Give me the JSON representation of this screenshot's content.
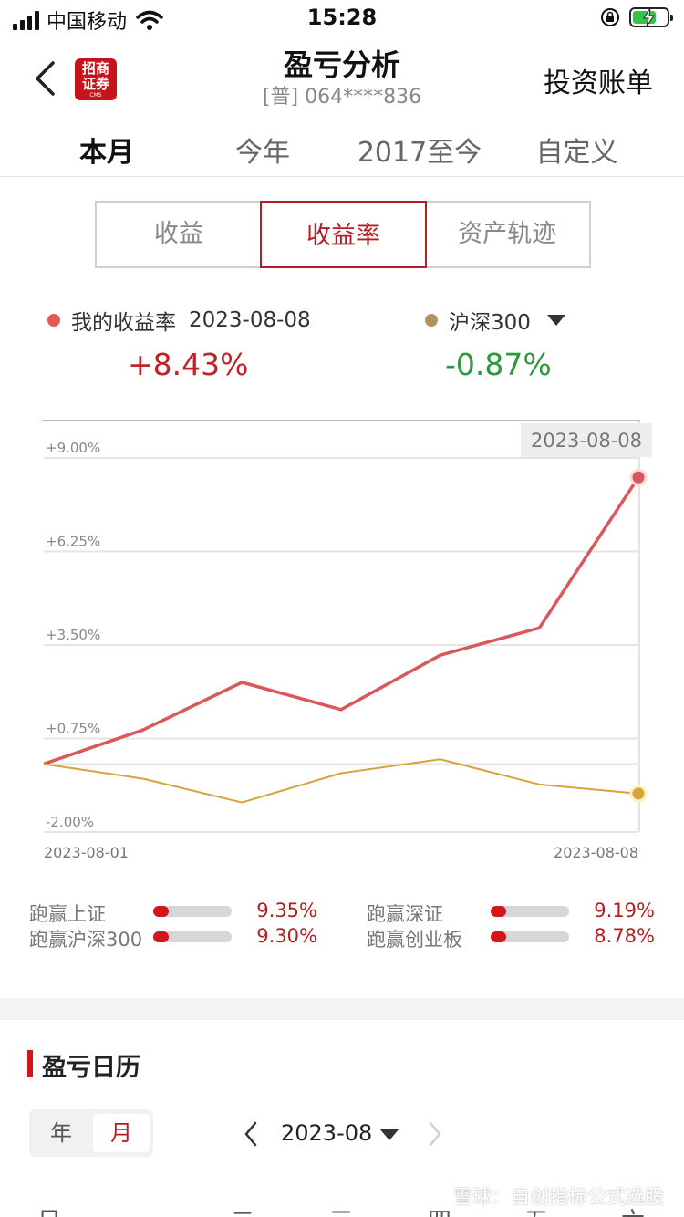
{
  "status_bar": {
    "carrier": "中国移动",
    "time": "15:28"
  },
  "nav": {
    "title": "盈亏分析",
    "account": "[普] 064****836",
    "logo_text": "招商证券",
    "logo_sub": "CMS",
    "right_link": "投资账单"
  },
  "period_tabs": [
    {
      "label": "本月",
      "active": true
    },
    {
      "label": "今年",
      "active": false
    },
    {
      "label": "2017至今",
      "active": false
    },
    {
      "label": "自定义",
      "active": false
    }
  ],
  "segments": [
    {
      "label": "收益",
      "active": false
    },
    {
      "label": "收益率",
      "active": true
    },
    {
      "label": "资产轨迹",
      "active": false
    }
  ],
  "legend": {
    "mine_label": "我的收益率",
    "mine_date": "2023-08-08",
    "mine_value": "+8.43%",
    "bench_label": "沪深300",
    "bench_value": "-0.87%",
    "mine_color": "#e05a5a",
    "bench_color": "#b89060"
  },
  "chart_data": {
    "type": "line",
    "y_ticks": [
      "+9.00%",
      "+6.25%",
      "+3.50%",
      "+0.75%",
      "-2.00%"
    ],
    "ylim": [
      -2.0,
      9.0
    ],
    "x_start_label": "2023-08-01",
    "x_end_label": "2023-08-08",
    "hover_date": "2023-08-08",
    "series": [
      {
        "name": "我的收益率",
        "color": "#d9585b",
        "values": [
          0.0,
          1.0,
          2.4,
          1.6,
          3.2,
          4.0,
          8.43
        ]
      },
      {
        "name": "沪深300",
        "color": "#d6a33d",
        "values": [
          0.0,
          -0.43,
          -1.13,
          -0.27,
          0.14,
          -0.6,
          -0.87
        ]
      }
    ]
  },
  "comparisons": [
    {
      "label": "跑赢上证",
      "value": "9.35%",
      "fill": 0.2
    },
    {
      "label": "跑赢深证",
      "value": "9.19%",
      "fill": 0.2
    },
    {
      "label": "跑赢沪深300",
      "value": "9.30%",
      "fill": 0.2
    },
    {
      "label": "跑赢创业板",
      "value": "8.78%",
      "fill": 0.2
    }
  ],
  "calendar": {
    "title": "盈亏日历",
    "toggle_year": "年",
    "toggle_month": "月",
    "month": "2023-08",
    "weekdays": [
      "日",
      "一",
      "二",
      "三",
      "四",
      "五",
      "六"
    ]
  },
  "watermark": "雪球：自创指标公式选股"
}
